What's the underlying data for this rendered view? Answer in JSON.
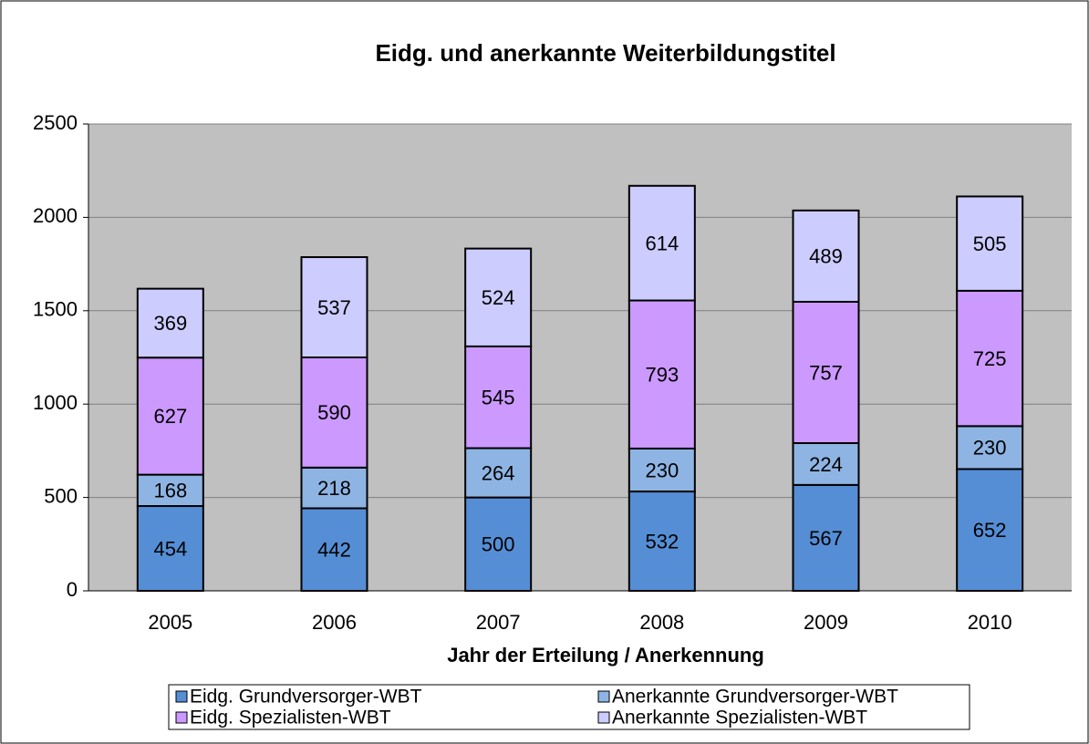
{
  "chart_data": {
    "type": "stacked_bar",
    "title": "Eidg. und anerkannte Weiterbildungstitel",
    "x_label": "Jahr der Erteilung / Anerkennung",
    "categories": [
      "2005",
      "2006",
      "2007",
      "2008",
      "2009",
      "2010"
    ],
    "series": [
      {
        "name": "Eidg. Grundversorger-WBT",
        "color": "#558ed5",
        "values": [
          454,
          442,
          500,
          532,
          567,
          652
        ]
      },
      {
        "name": "Anerkannte Grundversorger-WBT",
        "color": "#8eb4e3",
        "values": [
          168,
          218,
          264,
          230,
          224,
          230
        ]
      },
      {
        "name": "Eidg. Spezialisten-WBT",
        "color": "#cc99ff",
        "values": [
          627,
          590,
          545,
          793,
          757,
          725
        ]
      },
      {
        "name": "Anerkannte Spezialisten-WBT",
        "color": "#ccccff",
        "values": [
          369,
          537,
          524,
          614,
          489,
          505
        ]
      }
    ],
    "ylim": [
      0,
      2500
    ],
    "yticks": [
      0,
      500,
      1000,
      1500,
      2000,
      2500
    ],
    "grid": true,
    "legend": "bottom"
  }
}
